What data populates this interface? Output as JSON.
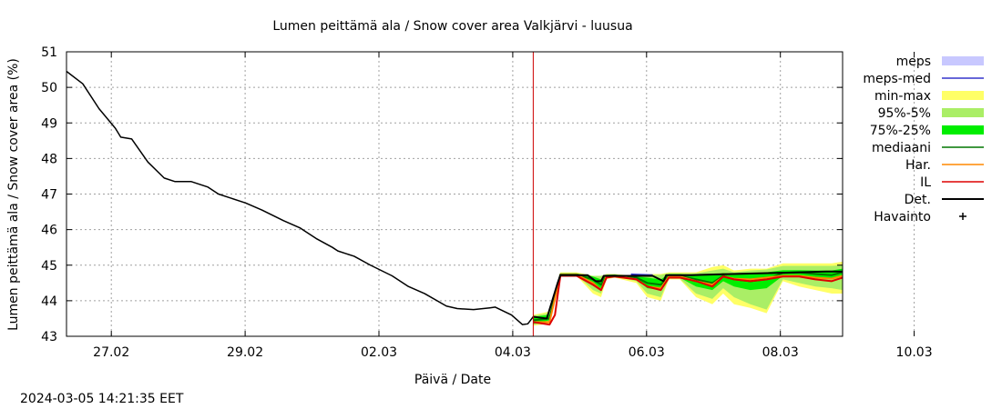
{
  "chart_data": {
    "type": "line",
    "title": "Lumen peittämä ala / Snow cover area Valkjärvi - luusua",
    "xlabel": "Päivä / Date",
    "ylabel": "Lumen peittämä ala / Snow cover area (%)",
    "ylim": [
      43,
      51
    ],
    "xlim_days": [
      -0.67,
      10.93
    ],
    "yticks": [
      43,
      44,
      45,
      46,
      47,
      48,
      49,
      50,
      51
    ],
    "xticks": [
      {
        "day": 1,
        "label": "27.02"
      },
      {
        "day": 3,
        "label": "29.02"
      },
      {
        "day": 5,
        "label": "02.03"
      },
      {
        "day": 7,
        "label": "04.03"
      },
      {
        "day": 9,
        "label": "06.03"
      },
      {
        "day": 11,
        "label": "08.03"
      },
      {
        "day": 13,
        "label": "10.03"
      }
    ],
    "grid": true,
    "legend_position": "right",
    "forecast_start_day": 8.6,
    "timestamp": "2024-03-05 14:21:35 EET",
    "legend": [
      {
        "label": "meps",
        "kind": "band",
        "color": "#c8c8ff"
      },
      {
        "label": "meps-med",
        "kind": "line",
        "color": "#3333cc"
      },
      {
        "label": "min-max",
        "kind": "band",
        "color": "#ffff66"
      },
      {
        "label": "95%-5%",
        "kind": "band",
        "color": "#aaee66"
      },
      {
        "label": "75%-25%",
        "kind": "band",
        "color": "#00ee00"
      },
      {
        "label": "mediaani",
        "kind": "line",
        "color": "#007700"
      },
      {
        "label": "Har.",
        "kind": "line",
        "color": "#ff8800"
      },
      {
        "label": "IL",
        "kind": "line",
        "color": "#dd0000"
      },
      {
        "label": "Det.",
        "kind": "line",
        "color": "#000000"
      },
      {
        "label": "Havainto",
        "kind": "marker",
        "color": "#000000"
      }
    ],
    "observed": {
      "x": [
        0.0,
        0.3,
        0.6,
        0.9,
        1.0,
        1.2,
        1.5,
        1.8,
        2.0,
        2.3,
        2.6,
        2.8,
        3.0,
        3.3,
        3.6,
        4.0,
        4.3,
        4.6,
        4.9,
        5.0,
        5.3,
        5.6,
        6.0,
        6.3,
        6.6,
        7.0,
        7.2,
        7.5,
        7.8,
        7.9,
        8.2,
        8.4,
        8.5,
        8.6
      ],
      "y": [
        50.45,
        50.1,
        49.4,
        48.85,
        48.6,
        48.55,
        47.9,
        47.45,
        47.35,
        47.35,
        47.2,
        47.0,
        46.9,
        46.75,
        46.55,
        46.25,
        46.05,
        45.75,
        45.5,
        45.4,
        45.25,
        45.0,
        44.7,
        44.4,
        44.2,
        43.85,
        43.78,
        43.75,
        43.8,
        43.82,
        43.6,
        43.33,
        43.35,
        43.55
      ]
    },
    "bands": {
      "x": [
        8.6,
        8.9,
        9.1,
        9.4,
        9.7,
        9.85,
        9.95,
        10.1,
        10.5,
        10.7,
        10.95,
        11.1,
        11.3,
        11.6,
        11.9,
        12.1,
        12.3,
        12.6,
        12.9,
        13.2,
        13.5,
        13.8,
        14.1,
        14.3
      ],
      "minmax_low": [
        43.3,
        43.35,
        44.7,
        44.7,
        44.2,
        44.1,
        44.6,
        44.65,
        44.5,
        44.1,
        44.0,
        44.6,
        44.6,
        44.1,
        43.9,
        44.2,
        43.9,
        43.8,
        43.65,
        44.55,
        44.4,
        44.3,
        44.2,
        44.2
      ],
      "minmax_high": [
        43.6,
        43.7,
        44.8,
        44.8,
        44.7,
        44.7,
        44.75,
        44.75,
        44.7,
        44.75,
        44.75,
        44.8,
        44.8,
        44.8,
        44.95,
        45.0,
        44.85,
        44.9,
        44.9,
        45.05,
        45.05,
        45.05,
        45.05,
        45.1
      ],
      "p95_low": [
        43.32,
        43.4,
        44.72,
        44.72,
        44.3,
        44.2,
        44.65,
        44.68,
        44.55,
        44.2,
        44.1,
        44.62,
        44.62,
        44.2,
        44.05,
        44.35,
        44.1,
        43.9,
        43.75,
        44.6,
        44.5,
        44.4,
        44.35,
        44.3
      ],
      "p95_high": [
        43.58,
        43.65,
        44.77,
        44.77,
        44.7,
        44.7,
        44.74,
        44.74,
        44.7,
        44.73,
        44.73,
        44.77,
        44.77,
        44.77,
        44.85,
        44.9,
        44.8,
        44.85,
        44.88,
        44.98,
        44.98,
        44.98,
        44.98,
        45.0
      ],
      "p75_low": [
        43.35,
        43.45,
        44.73,
        44.73,
        44.45,
        44.35,
        44.68,
        44.7,
        44.6,
        44.35,
        44.3,
        44.65,
        44.65,
        44.4,
        44.3,
        44.55,
        44.4,
        44.3,
        44.35,
        44.7,
        44.7,
        44.65,
        44.6,
        44.7
      ],
      "p75_high": [
        43.55,
        43.6,
        44.76,
        44.76,
        44.68,
        44.6,
        44.73,
        44.73,
        44.68,
        44.65,
        44.6,
        44.75,
        44.75,
        44.7,
        44.72,
        44.78,
        44.75,
        44.76,
        44.8,
        44.86,
        44.86,
        44.85,
        44.85,
        44.9
      ]
    },
    "series": [
      {
        "name": "mediaani",
        "color": "#007700",
        "x": [
          8.6,
          8.9,
          9.1,
          9.4,
          9.7,
          9.85,
          9.95,
          10.1,
          10.5,
          10.7,
          10.95,
          11.1,
          11.3,
          11.6,
          11.9,
          12.1,
          12.3,
          12.6,
          12.9,
          13.2,
          13.5,
          13.8,
          14.1,
          14.3
        ],
        "y": [
          43.45,
          43.5,
          44.74,
          44.74,
          44.6,
          44.45,
          44.7,
          44.71,
          44.65,
          44.5,
          44.45,
          44.7,
          44.7,
          44.6,
          44.5,
          44.7,
          44.6,
          44.55,
          44.6,
          44.78,
          44.8,
          44.75,
          44.72,
          44.8
        ]
      },
      {
        "name": "Har.",
        "color": "#ff8800",
        "x": [
          8.6,
          8.9,
          9.1,
          9.4,
          9.7,
          9.85,
          9.95,
          10.1,
          10.5,
          10.7,
          10.95,
          11.1,
          11.3,
          11.6,
          11.9,
          12.1,
          12.3,
          12.6,
          12.9,
          13.2,
          13.5,
          13.8,
          14.1,
          14.3
        ],
        "y": [
          43.4,
          43.4,
          44.73,
          44.73,
          44.5,
          44.3,
          44.7,
          44.7,
          44.6,
          44.4,
          44.35,
          44.68,
          44.68,
          44.55,
          44.45,
          44.68,
          44.62,
          44.6,
          44.65,
          44.7,
          44.7,
          44.65,
          44.62,
          44.7
        ]
      },
      {
        "name": "IL",
        "color": "#dd0000",
        "x": [
          8.6,
          8.9,
          9.0,
          9.1,
          9.4,
          9.7,
          9.85,
          9.95,
          10.1,
          10.5,
          10.7,
          10.95,
          11.1,
          11.3,
          11.6,
          11.9,
          12.1,
          12.3,
          12.6,
          12.9,
          13.2,
          13.5,
          13.8,
          14.1,
          14.3
        ],
        "y": [
          43.4,
          43.33,
          43.6,
          44.7,
          44.7,
          44.45,
          44.3,
          44.65,
          44.68,
          44.6,
          44.4,
          44.3,
          44.65,
          44.65,
          44.55,
          44.4,
          44.68,
          44.6,
          44.55,
          44.6,
          44.68,
          44.68,
          44.6,
          44.55,
          44.65
        ]
      },
      {
        "name": "Det.",
        "color": "#000000",
        "x": [
          8.6,
          8.85,
          9.05,
          9.1,
          9.5,
          9.6,
          9.75,
          9.85,
          9.9,
          10.2,
          10.6,
          10.8,
          11.0,
          11.05,
          11.5,
          12.0,
          12.5,
          13.0,
          13.5,
          14.0,
          14.3
        ],
        "y": [
          43.55,
          43.5,
          44.5,
          44.72,
          44.72,
          44.72,
          44.55,
          44.55,
          44.7,
          44.7,
          44.7,
          44.7,
          44.55,
          44.72,
          44.72,
          44.74,
          44.76,
          44.78,
          44.8,
          44.82,
          44.82
        ]
      },
      {
        "name": "meps-med",
        "color": "#3333cc",
        "x": [
          10.4,
          10.6,
          10.8
        ],
        "y": [
          44.74,
          44.73,
          44.72
        ]
      }
    ]
  }
}
